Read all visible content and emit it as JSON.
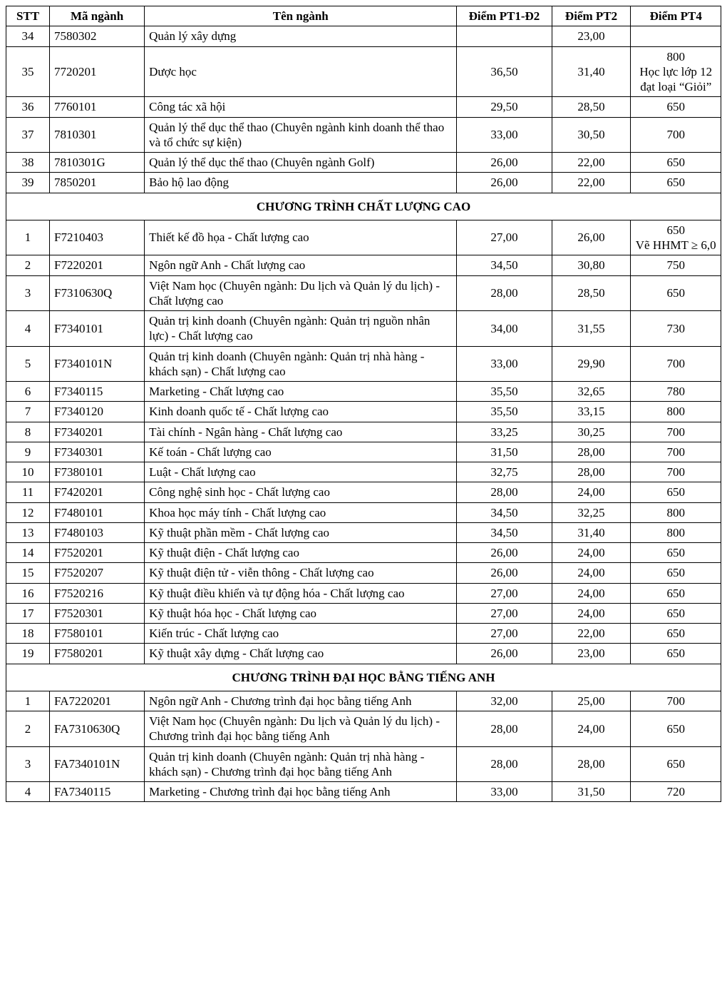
{
  "columns": [
    "STT",
    "Mã ngành",
    "Tên ngành",
    "Điểm PT1-Đ2",
    "Điểm PT2",
    "Điểm PT4"
  ],
  "rows": [
    {
      "type": "row",
      "cells": [
        "34",
        "7580302",
        "Quản lý xây dựng",
        "",
        "23,00",
        ""
      ]
    },
    {
      "type": "row",
      "cells": [
        "35",
        "7720201",
        "Dược học",
        "36,50",
        "31,40",
        "800\nHọc lực lớp 12 đạt loại “Giỏi”"
      ]
    },
    {
      "type": "row",
      "cells": [
        "36",
        "7760101",
        "Công tác xã hội",
        "29,50",
        "28,50",
        "650"
      ]
    },
    {
      "type": "row",
      "cells": [
        "37",
        "7810301",
        "Quản lý thể dục thể thao (Chuyên ngành kinh doanh thể thao và tổ chức sự kiện)",
        "33,00",
        "30,50",
        "700"
      ]
    },
    {
      "type": "row",
      "cells": [
        "38",
        "7810301G",
        "Quản lý thể dục thể thao (Chuyên ngành Golf)",
        "26,00",
        "22,00",
        "650"
      ]
    },
    {
      "type": "row",
      "cells": [
        "39",
        "7850201",
        "Bảo hộ lao động",
        "26,00",
        "22,00",
        "650"
      ]
    },
    {
      "type": "section",
      "label": "CHƯƠNG TRÌNH CHẤT LƯỢNG CAO"
    },
    {
      "type": "row",
      "cells": [
        "1",
        "F7210403",
        "Thiết kế đồ họa - Chất lượng cao",
        "27,00",
        "26,00",
        "650\nVẽ HHMT ≥ 6,0"
      ]
    },
    {
      "type": "row",
      "cells": [
        "2",
        "F7220201",
        "Ngôn ngữ Anh - Chất lượng cao",
        "34,50",
        "30,80",
        "750"
      ]
    },
    {
      "type": "row",
      "cells": [
        "3",
        "F7310630Q",
        "Việt Nam học (Chuyên ngành: Du lịch và Quản lý du lịch) - Chất lượng cao",
        "28,00",
        "28,50",
        "650"
      ]
    },
    {
      "type": "row",
      "cells": [
        "4",
        "F7340101",
        "Quản trị kinh doanh (Chuyên ngành: Quản trị nguồn nhân lực) - Chất lượng cao",
        "34,00",
        "31,55",
        "730"
      ]
    },
    {
      "type": "row",
      "cells": [
        "5",
        "F7340101N",
        "Quản trị kinh doanh (Chuyên ngành: Quản trị nhà hàng - khách sạn) - Chất lượng cao",
        "33,00",
        "29,90",
        "700"
      ]
    },
    {
      "type": "row",
      "cells": [
        "6",
        "F7340115",
        "Marketing - Chất lượng cao",
        "35,50",
        "32,65",
        "780"
      ]
    },
    {
      "type": "row",
      "cells": [
        "7",
        "F7340120",
        "Kinh doanh quốc tế - Chất lượng cao",
        "35,50",
        "33,15",
        "800"
      ]
    },
    {
      "type": "row",
      "cells": [
        "8",
        "F7340201",
        "Tài chính - Ngân hàng - Chất lượng cao",
        "33,25",
        "30,25",
        "700"
      ]
    },
    {
      "type": "row",
      "cells": [
        "9",
        "F7340301",
        "Kế toán - Chất lượng cao",
        "31,50",
        "28,00",
        "700"
      ]
    },
    {
      "type": "row",
      "cells": [
        "10",
        "F7380101",
        "Luật - Chất lượng cao",
        "32,75",
        "28,00",
        "700"
      ]
    },
    {
      "type": "row",
      "cells": [
        "11",
        "F7420201",
        "Công nghệ sinh học - Chất lượng cao",
        "28,00",
        "24,00",
        "650"
      ]
    },
    {
      "type": "row",
      "cells": [
        "12",
        "F7480101",
        "Khoa học máy tính - Chất lượng cao",
        "34,50",
        "32,25",
        "800"
      ]
    },
    {
      "type": "row",
      "cells": [
        "13",
        "F7480103",
        "Kỹ thuật phần mềm - Chất lượng cao",
        "34,50",
        "31,40",
        "800"
      ]
    },
    {
      "type": "row",
      "cells": [
        "14",
        "F7520201",
        "Kỹ thuật điện - Chất lượng cao",
        "26,00",
        "24,00",
        "650"
      ]
    },
    {
      "type": "row",
      "cells": [
        "15",
        "F7520207",
        "Kỹ thuật điện tử - viễn thông - Chất lượng cao",
        "26,00",
        "24,00",
        "650"
      ]
    },
    {
      "type": "row",
      "cells": [
        "16",
        "F7520216",
        "Kỹ thuật điều khiển và tự động hóa - Chất lượng cao",
        "27,00",
        "24,00",
        "650"
      ]
    },
    {
      "type": "row",
      "cells": [
        "17",
        "F7520301",
        "Kỹ thuật hóa học - Chất lượng cao",
        "27,00",
        "24,00",
        "650"
      ]
    },
    {
      "type": "row",
      "cells": [
        "18",
        "F7580101",
        "Kiến trúc - Chất lượng cao",
        "27,00",
        "22,00",
        "650"
      ]
    },
    {
      "type": "row",
      "cells": [
        "19",
        "F7580201",
        "Kỹ thuật xây dựng - Chất lượng cao",
        "26,00",
        "23,00",
        "650"
      ]
    },
    {
      "type": "section",
      "label": "CHƯƠNG TRÌNH ĐẠI HỌC BẰNG TIẾNG ANH"
    },
    {
      "type": "row",
      "cells": [
        "1",
        "FA7220201",
        "Ngôn ngữ Anh - Chương trình đại học bằng tiếng Anh",
        "32,00",
        "25,00",
        "700"
      ]
    },
    {
      "type": "row",
      "cells": [
        "2",
        "FA7310630Q",
        "Việt Nam học (Chuyên ngành: Du lịch và Quản lý du lịch) - Chương trình đại học bằng tiếng Anh",
        "28,00",
        "24,00",
        "650"
      ]
    },
    {
      "type": "row",
      "cells": [
        "3",
        "FA7340101N",
        "Quản trị kinh doanh (Chuyên ngành: Quản trị nhà hàng - khách sạn) - Chương trình đại học bằng tiếng Anh",
        "28,00",
        "28,00",
        "650"
      ]
    },
    {
      "type": "row",
      "cells": [
        "4",
        "FA7340115",
        "Marketing - Chương trình đại học bằng tiếng Anh",
        "33,00",
        "31,50",
        "720"
      ]
    }
  ]
}
